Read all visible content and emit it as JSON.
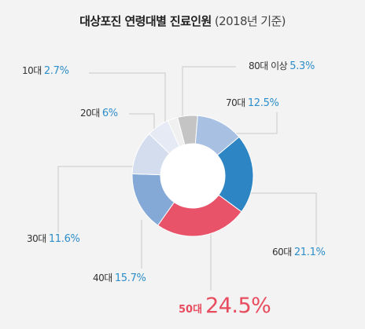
{
  "header": {
    "title": "대상포진 연령대별 진료인원",
    "subtitle": "(2018년 기준)"
  },
  "chart_data": {
    "type": "pie",
    "donut": true,
    "title": "대상포진 연령대별 진료인원",
    "subtitle": "(2018년 기준)",
    "unit": "%",
    "slices": [
      {
        "label": "10대",
        "value": 2.7,
        "display": "2.7%",
        "color": "#f0f0f0"
      },
      {
        "label": "20대",
        "value": 6,
        "display": "6%",
        "color": "#e6eaf4"
      },
      {
        "label": "30대",
        "value": 11.6,
        "display": "11.6%",
        "color": "#d4ddee"
      },
      {
        "label": "40대",
        "value": 15.7,
        "display": "15.7%",
        "color": "#84a9d6"
      },
      {
        "label": "50대",
        "value": 24.5,
        "display": "24.5%",
        "color": "#e9536a",
        "highlight": true
      },
      {
        "label": "60대",
        "value": 21.1,
        "display": "21.1%",
        "color": "#2e85c4"
      },
      {
        "label": "70대",
        "value": 12.5,
        "display": "12.5%",
        "color": "#a8c1e3"
      },
      {
        "label": "80대 이상",
        "value": 5.3,
        "display": "5.3%",
        "color": "#c4c4c4"
      }
    ],
    "legend": "none"
  }
}
